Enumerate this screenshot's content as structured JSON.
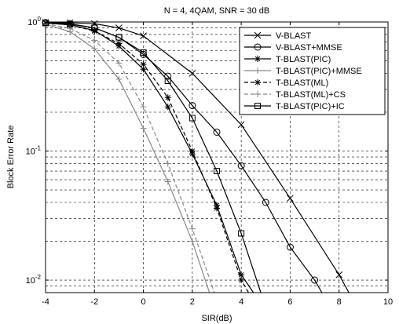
{
  "chart_data": {
    "type": "line",
    "title": "N = 4, 4QAM, SNR = 30 dB",
    "xlabel": "SIR(dB)",
    "ylabel": "Block Error Rate",
    "xlim": [
      -4,
      10
    ],
    "ylim": [
      0.008,
      1
    ],
    "yscale": "log",
    "grid": "dashed",
    "legend_position": "top-right",
    "x_ticks": [
      "-4",
      "-2",
      "0",
      "2",
      "4",
      "6",
      "8",
      "10"
    ],
    "x_tick_values": [
      -4,
      -2,
      0,
      2,
      4,
      6,
      8,
      10
    ],
    "y_ticks": [
      {
        "value": 0.01,
        "base": "10",
        "exp": "-2"
      },
      {
        "value": 0.1,
        "base": "10",
        "exp": "-1"
      },
      {
        "value": 1,
        "base": "10",
        "exp": "0"
      }
    ],
    "series": [
      {
        "name": "V-BLAST",
        "color": "#000000",
        "dash": "solid",
        "marker": "x",
        "x": [
          -4,
          -3,
          -2,
          -1,
          0,
          2,
          4,
          6,
          8,
          8.4
        ],
        "y": [
          0.99,
          0.985,
          0.97,
          0.9,
          0.78,
          0.4,
          0.16,
          0.043,
          0.011,
          0.008
        ]
      },
      {
        "name": "V-BLAST+MMSE",
        "color": "#000000",
        "dash": "solid",
        "marker": "o",
        "x": [
          -4,
          -3,
          -2,
          -1,
          0,
          1,
          2,
          3,
          4,
          5,
          6,
          7,
          7.3
        ],
        "y": [
          0.99,
          0.97,
          0.9,
          0.76,
          0.56,
          0.38,
          0.225,
          0.14,
          0.077,
          0.04,
          0.018,
          0.01,
          0.008
        ]
      },
      {
        "name": "T-BLAST(PIC)",
        "color": "#000000",
        "dash": "solid",
        "marker": "*",
        "x": [
          -4,
          -3,
          -2,
          -1,
          0,
          1,
          2,
          3,
          4,
          4.5
        ],
        "y": [
          0.98,
          0.95,
          0.86,
          0.65,
          0.43,
          0.22,
          0.095,
          0.038,
          0.011,
          0.008
        ]
      },
      {
        "name": "T-BLAST(PIC)+MMSE",
        "color": "#888888",
        "dash": "solid",
        "marker": "+",
        "x": [
          -4,
          -3,
          -2,
          -1,
          0,
          1,
          2,
          2.7
        ],
        "y": [
          0.96,
          0.84,
          0.62,
          0.36,
          0.15,
          0.058,
          0.02,
          0.008
        ]
      },
      {
        "name": "T-BLAST(ML)",
        "color": "#000000",
        "dash": "dashed",
        "marker": "*",
        "x": [
          -4,
          -3,
          -2,
          -1,
          0,
          1,
          2,
          3,
          4,
          4.3
        ],
        "y": [
          0.98,
          0.95,
          0.85,
          0.68,
          0.47,
          0.26,
          0.1,
          0.036,
          0.01,
          0.008
        ]
      },
      {
        "name": "T-BLAST(ML)+CS",
        "color": "#888888",
        "dash": "dashed",
        "marker": "+",
        "x": [
          -4,
          -3,
          -2,
          -1,
          0,
          1,
          2,
          2.9
        ],
        "y": [
          0.97,
          0.89,
          0.72,
          0.48,
          0.22,
          0.08,
          0.025,
          0.008
        ]
      },
      {
        "name": "T-BLAST(PIC)+IC",
        "color": "#000000",
        "dash": "solid",
        "marker": "s",
        "x": [
          -4,
          -3,
          -2,
          -1,
          0,
          1,
          2,
          3,
          4,
          4.8
        ],
        "y": [
          0.98,
          0.96,
          0.9,
          0.76,
          0.58,
          0.35,
          0.18,
          0.07,
          0.023,
          0.008
        ]
      }
    ]
  }
}
